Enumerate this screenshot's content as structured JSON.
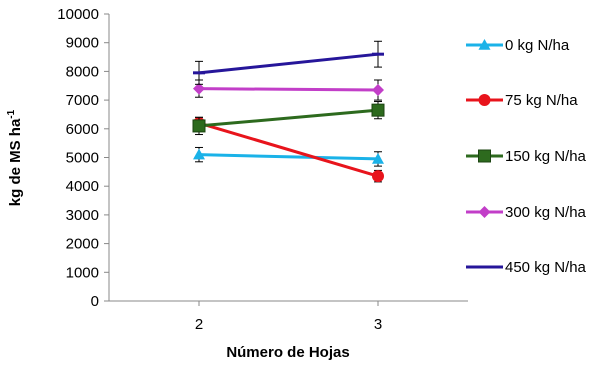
{
  "chart_data": {
    "type": "line",
    "xlabel": "Número de Hojas",
    "ylabel": "kg de MS ha",
    "ylabel_superscript": "-1",
    "categories": [
      "2",
      "3"
    ],
    "ylim": [
      0,
      10000
    ],
    "yticks": [
      0,
      1000,
      2000,
      3000,
      4000,
      5000,
      6000,
      7000,
      8000,
      9000,
      10000
    ],
    "grid": false,
    "legend_position": "right",
    "series": [
      {
        "name": "0 kg N/ha",
        "color": "#1ab2e8",
        "marker": "triangle",
        "values": [
          5100,
          4950
        ],
        "errors": [
          250,
          250
        ]
      },
      {
        "name": "75 kg N/ha",
        "color": "#e8141c",
        "marker": "circle",
        "values": [
          6200,
          4350
        ],
        "errors": [
          200,
          200
        ]
      },
      {
        "name": "150 kg N/ha",
        "color": "#2d6a1e",
        "marker": "square",
        "values": [
          6100,
          6650
        ],
        "errors": [
          300,
          300
        ]
      },
      {
        "name": "300 kg N/ha",
        "color": "#c23ec8",
        "marker": "diamond",
        "values": [
          7400,
          7350
        ],
        "errors": [
          300,
          350
        ]
      },
      {
        "name": "450 kg N/ha",
        "color": "#26169a",
        "marker": "dash",
        "values": [
          7950,
          8600
        ],
        "errors": [
          400,
          450
        ]
      }
    ]
  }
}
